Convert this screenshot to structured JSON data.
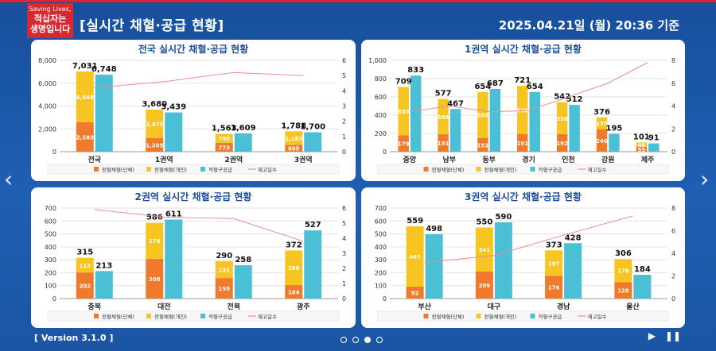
{
  "header": {
    "logo_line1": "Saving Lives,",
    "logo_line2": "적십자는",
    "logo_line3": "생명입니다",
    "title": "[실시간 채혈·공급 현황]",
    "date": "2025.04.21일 (월) 20:36 기준"
  },
  "footer": {
    "version": "[ Version 3.1.0 ]",
    "play_icon": "play-icon",
    "pause_icon": "pause-icon"
  },
  "nav": {
    "prev": "‹",
    "next": "›"
  },
  "colors": {
    "group": "#f07a2b",
    "individual": "#f7c521",
    "supply": "#4bbfd5",
    "days": "#e88f8f",
    "title": "#1a4e9a"
  },
  "legend": [
    "전혈채혈(단체)",
    "전혈채혈(개인)",
    "적혈구공급",
    "재고일수"
  ],
  "chart_data": [
    {
      "type": "bar",
      "title": "전국 실시간 채혈·공급 현황",
      "categories": [
        "전국",
        "1권역",
        "2권역",
        "3권역"
      ],
      "series": [
        {
          "name": "전혈채혈(단체)",
          "values": [
            2583,
            1205,
            773,
            605
          ]
        },
        {
          "name": "전혈채혈(개인)",
          "values": [
            4448,
            2475,
            790,
            1183
          ]
        },
        {
          "name": "적혈구공급",
          "values": [
            6748,
            3439,
            1609,
            1700
          ]
        },
        {
          "name": "재고일수",
          "values": [
            4.2,
            4.6,
            5.2,
            5.0
          ]
        }
      ],
      "totals": [
        7031,
        3680,
        1563,
        1788
      ],
      "supply_labels": [
        6748,
        3439,
        1609,
        1700
      ],
      "ylim": [
        0,
        8000
      ],
      "yticks": [
        "0",
        "2,000",
        "4,000",
        "6,000",
        "8,000"
      ],
      "y2lim": [
        0,
        6
      ],
      "y2ticks": [
        "0",
        "1",
        "2",
        "3",
        "4",
        "5",
        "6"
      ]
    },
    {
      "type": "bar",
      "title": "1권역 실시간 채혈·공급 현황",
      "categories": [
        "중앙",
        "남부",
        "동부",
        "경기",
        "인천",
        "강원",
        "제주"
      ],
      "series": [
        {
          "name": "전혈채혈(단체)",
          "values": [
            179,
            191,
            151,
            191,
            192,
            246,
            55
          ]
        },
        {
          "name": "전혈채혈(개인)",
          "values": [
            530,
            386,
            503,
            530,
            350,
            130,
            46
          ]
        },
        {
          "name": "적혈구공급",
          "values": [
            833,
            467,
            687,
            654,
            512,
            195,
            91
          ]
        },
        {
          "name": "재고일수",
          "values": [
            3.5,
            4.0,
            3.5,
            3.6,
            4.8,
            6.0,
            7.8
          ]
        }
      ],
      "totals": [
        709,
        577,
        654,
        721,
        542,
        376,
        101
      ],
      "supply_labels": [
        833,
        467,
        687,
        654,
        512,
        195,
        91
      ],
      "ylim": [
        0,
        1000
      ],
      "yticks": [
        "0",
        "200",
        "400",
        "600",
        "800",
        "1,000"
      ],
      "y2lim": [
        0,
        8
      ],
      "y2ticks": [
        "0",
        "2",
        "4",
        "6",
        "8"
      ]
    },
    {
      "type": "bar",
      "title": "2권역 실시간 채혈·공급 현황",
      "categories": [
        "충북",
        "대전",
        "전북",
        "광주"
      ],
      "series": [
        {
          "name": "전혈채혈(단체)",
          "values": [
            202,
            308,
            159,
            104
          ]
        },
        {
          "name": "전혈채혈(개인)",
          "values": [
            113,
            278,
            131,
            268
          ]
        },
        {
          "name": "적혈구공급",
          "values": [
            213,
            611,
            258,
            527
          ]
        },
        {
          "name": "재고일수",
          "values": [
            5.9,
            5.4,
            5.3,
            3.8
          ]
        }
      ],
      "totals": [
        315,
        586,
        290,
        372
      ],
      "supply_labels": [
        213,
        611,
        258,
        527
      ],
      "ylim": [
        0,
        700
      ],
      "yticks": [
        "0",
        "100",
        "200",
        "300",
        "400",
        "500",
        "600",
        "700"
      ],
      "y2lim": [
        0,
        6
      ],
      "y2ticks": [
        "0",
        "1",
        "2",
        "3",
        "4",
        "5",
        "6"
      ]
    },
    {
      "type": "bar",
      "title": "3권역 실시간 채혈·공급 현황",
      "categories": [
        "부산",
        "대구",
        "경남",
        "울산"
      ],
      "series": [
        {
          "name": "전혈채혈(단체)",
          "values": [
            92,
            209,
            176,
            128
          ]
        },
        {
          "name": "전혈채혈(개인)",
          "values": [
            467,
            341,
            197,
            178
          ]
        },
        {
          "name": "적혈구공급",
          "values": [
            498,
            590,
            428,
            184
          ]
        },
        {
          "name": "재고일수",
          "values": [
            3.2,
            3.8,
            5.6,
            7.3
          ]
        }
      ],
      "totals": [
        559,
        550,
        373,
        306
      ],
      "supply_labels": [
        498,
        590,
        428,
        184
      ],
      "ylim": [
        0,
        700
      ],
      "yticks": [
        "0",
        "100",
        "200",
        "300",
        "400",
        "500",
        "600",
        "700"
      ],
      "y2lim": [
        0,
        8
      ],
      "y2ticks": [
        "0",
        "2",
        "4",
        "6",
        "8"
      ]
    }
  ]
}
